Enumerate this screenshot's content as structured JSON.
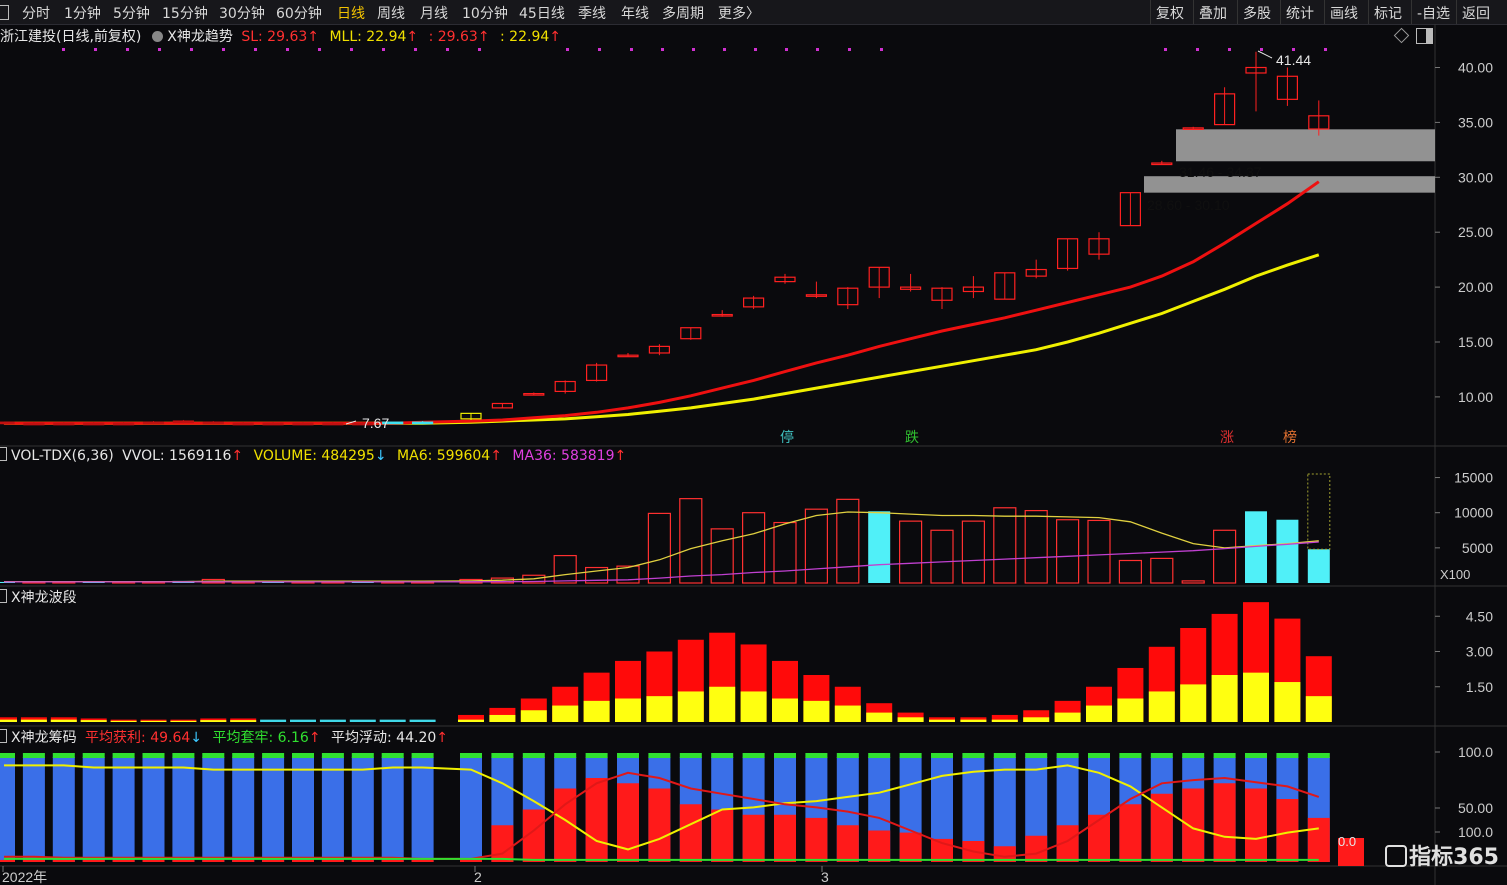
{
  "toolbar": {
    "periods": [
      "分时",
      "1分钟",
      "5分钟",
      "15分钟",
      "30分钟",
      "60分钟",
      "日线",
      "周线",
      "月线",
      "10分钟",
      "45日线",
      "季线",
      "年线",
      "多周期",
      "更多〉"
    ],
    "active_period": "日线",
    "right_buttons": [
      "复权",
      "叠加",
      "多股",
      "统计",
      "画线",
      "标记",
      "-自选",
      "返回"
    ]
  },
  "main_panel": {
    "title": "浙江建投(日线,前复权)",
    "indicator": "X神龙趋势",
    "sl": "SL: 29.63",
    "mll": "MLL: 22.94",
    "v3": ": 29.63",
    "v4": ": 22.94",
    "high_label": "41.44",
    "low_label": "7.67",
    "zone1": "31.46 - 34.37",
    "zone2": "28.60 - 30.10",
    "y_ticks": [
      "40.00",
      "35.00",
      "30.00",
      "25.00",
      "20.00",
      "15.00",
      "10.00"
    ],
    "markers": [
      "停",
      "跌",
      "涨",
      "榜"
    ]
  },
  "vol_panel": {
    "name": "VOL-TDX(6,36)",
    "vvol": "VVOL: 1569116",
    "volume": "VOLUME: 484295",
    "ma6": "MA6: 599604",
    "ma36": "MA36: 583819",
    "y_ticks": [
      "15000",
      "10000",
      "5000"
    ],
    "unit": "X100"
  },
  "wave_panel": {
    "name": "X神龙波段",
    "y_ticks": [
      "4.50",
      "3.00",
      "1.50"
    ]
  },
  "chip_panel": {
    "name": "X神龙筹码",
    "profit": "平均获利: 49.64",
    "trap": "平均套牢: 6.16",
    "float": "平均浮动: 44.20",
    "y_ticks": [
      "100.0",
      "50.00",
      "100.0"
    ],
    "overlay_label": "0.0"
  },
  "x_axis": [
    "2022年",
    "2",
    "3"
  ],
  "watermark": "指标365",
  "chart_data": {
    "type": "candlestick",
    "candles": [
      [
        7.7,
        7.7,
        7.5,
        7.6
      ],
      [
        7.6,
        7.7,
        7.5,
        7.6
      ],
      [
        7.6,
        7.7,
        7.5,
        7.6
      ],
      [
        7.6,
        7.7,
        7.5,
        7.6
      ],
      [
        7.6,
        7.7,
        7.5,
        7.6
      ],
      [
        7.6,
        7.8,
        7.5,
        7.7
      ],
      [
        7.7,
        7.9,
        7.6,
        7.8
      ],
      [
        7.7,
        7.8,
        7.5,
        7.6
      ],
      [
        7.6,
        7.7,
        7.5,
        7.6
      ],
      [
        7.6,
        7.7,
        7.5,
        7.6
      ],
      [
        7.6,
        7.7,
        7.5,
        7.6
      ],
      [
        7.6,
        7.7,
        7.5,
        7.6
      ],
      [
        7.6,
        7.7,
        7.5,
        7.6
      ],
      [
        7.6,
        7.7,
        7.67,
        7.7
      ],
      [
        7.7,
        7.8,
        7.6,
        7.7
      ],
      [
        8.0,
        8.5,
        7.9,
        8.5
      ],
      [
        9.0,
        9.4,
        9.0,
        9.4
      ],
      [
        10.3,
        10.4,
        10.2,
        10.3
      ],
      [
        10.5,
        11.5,
        10.3,
        11.4
      ],
      [
        11.5,
        13.1,
        11.4,
        12.9
      ],
      [
        13.8,
        14.0,
        13.7,
        13.8
      ],
      [
        14.0,
        14.8,
        13.8,
        14.6
      ],
      [
        15.3,
        16.3,
        15.2,
        16.3
      ],
      [
        17.5,
        17.9,
        17.3,
        17.4
      ],
      [
        18.2,
        19.2,
        18.0,
        19.0
      ],
      [
        20.5,
        21.2,
        20.3,
        20.9
      ],
      [
        19.3,
        20.5,
        19.0,
        19.3
      ],
      [
        18.4,
        20.0,
        18.0,
        19.9
      ],
      [
        20.0,
        21.8,
        19.0,
        21.8
      ],
      [
        19.8,
        21.2,
        19.6,
        20.0
      ],
      [
        18.8,
        20.0,
        18.0,
        19.9
      ],
      [
        19.6,
        21.0,
        19.0,
        20.0
      ],
      [
        18.9,
        21.3,
        18.9,
        21.3
      ],
      [
        21.0,
        22.5,
        20.8,
        21.6
      ],
      [
        21.7,
        24.4,
        21.5,
        24.4
      ],
      [
        23.0,
        25.0,
        22.5,
        24.4
      ],
      [
        25.6,
        28.6,
        25.6,
        28.6
      ],
      [
        31.3,
        31.5,
        31.2,
        31.3
      ],
      [
        34.5,
        34.6,
        34.4,
        34.5
      ],
      [
        34.8,
        38.2,
        34.8,
        37.6
      ],
      [
        39.5,
        41.44,
        36.0,
        40.0
      ],
      [
        39.2,
        40.0,
        36.5,
        37.1
      ],
      [
        34.4,
        37.0,
        33.8,
        35.6
      ]
    ],
    "ma_red": [
      7.6,
      7.6,
      7.6,
      7.6,
      7.6,
      7.6,
      7.6,
      7.6,
      7.6,
      7.6,
      7.6,
      7.6,
      7.6,
      7.6,
      7.7,
      7.8,
      7.9,
      8.1,
      8.3,
      8.6,
      9.0,
      9.5,
      10.1,
      10.8,
      11.5,
      12.3,
      13.1,
      13.8,
      14.6,
      15.3,
      16.0,
      16.6,
      17.2,
      17.9,
      18.6,
      19.3,
      20.0,
      21.0,
      22.3,
      24.0,
      25.8,
      27.6,
      29.6
    ],
    "ma_yellow": [
      7.6,
      7.6,
      7.6,
      7.6,
      7.6,
      7.6,
      7.6,
      7.6,
      7.6,
      7.6,
      7.6,
      7.6,
      7.6,
      7.6,
      7.6,
      7.7,
      7.8,
      7.9,
      8.0,
      8.2,
      8.4,
      8.7,
      9.0,
      9.4,
      9.8,
      10.3,
      10.8,
      11.3,
      11.8,
      12.3,
      12.8,
      13.3,
      13.8,
      14.3,
      15.0,
      15.8,
      16.7,
      17.6,
      18.7,
      19.8,
      21.0,
      22.0,
      22.94
    ],
    "volume": [
      150,
      150,
      150,
      200,
      150,
      150,
      300,
      500,
      200,
      150,
      150,
      150,
      150,
      200,
      200,
      500,
      700,
      1100,
      3900,
      2200,
      2400,
      9900,
      12000,
      7700,
      10000,
      8600,
      10500,
      11900,
      10200,
      8800,
      7500,
      8800,
      10700,
      10300,
      9000,
      8900,
      3200,
      3500,
      300,
      7500,
      10200,
      9000,
      4800
    ],
    "volume_up": [
      false,
      false,
      false,
      false,
      false,
      false,
      false,
      false,
      false,
      false,
      false,
      false,
      false,
      false,
      false,
      true,
      true,
      true,
      true,
      true,
      true,
      true,
      true,
      true,
      true,
      true,
      true,
      true,
      true,
      false,
      true,
      true,
      true,
      true,
      true,
      true,
      true,
      true,
      true,
      true,
      false,
      false,
      false
    ],
    "vol_ma6": [
      200,
      200,
      200,
      200,
      200,
      200,
      200,
      250,
      250,
      250,
      250,
      250,
      250,
      250,
      250,
      300,
      400,
      600,
      1200,
      1700,
      2200,
      3300,
      4900,
      6000,
      7000,
      8400,
      9600,
      10100,
      10000,
      9800,
      9600,
      9600,
      9500,
      9500,
      9400,
      9300,
      8700,
      7100,
      5600,
      5000,
      5300,
      5600,
      6000
    ],
    "vol_ma36": [
      150,
      150,
      150,
      150,
      150,
      150,
      150,
      160,
      160,
      160,
      160,
      160,
      160,
      160,
      160,
      170,
      190,
      220,
      300,
      380,
      460,
      700,
      1000,
      1200,
      1500,
      1700,
      2000,
      2300,
      2600,
      2800,
      3000,
      3200,
      3400,
      3600,
      3800,
      4000,
      4200,
      4400,
      4600,
      4900,
      5200,
      5500,
      5838
    ],
    "wave": [
      0.2,
      0.2,
      0.2,
      0.15,
      0.1,
      0.1,
      0.1,
      0.15,
      0.15,
      0.1,
      0.1,
      0.1,
      0.1,
      0.1,
      0.1,
      0.3,
      0.6,
      1.0,
      1.5,
      2.1,
      2.6,
      3.0,
      3.5,
      3.8,
      3.3,
      2.6,
      2.0,
      1.5,
      0.8,
      0.4,
      0.2,
      0.2,
      0.3,
      0.5,
      0.9,
      1.5,
      2.3,
      3.2,
      4.0,
      4.6,
      5.1,
      4.4,
      2.8
    ],
    "wave_yellow": [
      0.1,
      0.1,
      0.1,
      0.08,
      0.05,
      0.05,
      0.05,
      0.08,
      0.08,
      0.05,
      0.05,
      0.05,
      0.05,
      0.05,
      0.05,
      0.1,
      0.3,
      0.5,
      0.7,
      0.9,
      1.0,
      1.1,
      1.3,
      1.5,
      1.3,
      1.0,
      0.9,
      0.7,
      0.4,
      0.2,
      0.1,
      0.1,
      0.1,
      0.2,
      0.4,
      0.7,
      1.0,
      1.3,
      1.6,
      2.0,
      2.1,
      1.7,
      1.1
    ],
    "chip_profit": [
      2,
      2,
      2,
      2,
      2,
      2,
      2,
      2,
      2,
      2,
      2,
      2,
      2,
      2,
      2,
      2,
      35,
      50,
      70,
      80,
      75,
      70,
      55,
      50,
      45,
      45,
      42,
      35,
      30,
      28,
      22,
      20,
      15,
      25,
      35,
      45,
      55,
      65,
      70,
      75,
      70,
      60,
      42
    ],
    "chip_yellow": [
      92,
      92,
      92,
      90,
      90,
      90,
      90,
      88,
      88,
      88,
      88,
      88,
      88,
      90,
      90,
      88,
      75,
      58,
      40,
      20,
      12,
      22,
      36,
      50,
      52,
      56,
      58,
      62,
      66,
      74,
      82,
      86,
      88,
      88,
      92,
      85,
      72,
      52,
      32,
      24,
      22,
      28,
      32
    ],
    "chip_red_line": [
      5,
      5,
      4,
      4,
      4,
      4,
      4,
      4,
      4,
      4,
      4,
      4,
      4,
      4,
      3,
      3,
      8,
      30,
      55,
      75,
      85,
      80,
      70,
      65,
      60,
      55,
      52,
      48,
      42,
      30,
      18,
      10,
      5,
      8,
      20,
      40,
      60,
      75,
      78,
      80,
      76,
      72,
      62
    ],
    "chip_green": [
      3,
      3,
      3,
      3,
      3,
      3,
      3,
      3,
      3,
      3,
      3,
      3,
      3,
      3,
      3,
      3,
      3,
      2,
      2,
      2,
      2,
      2,
      2,
      2,
      2,
      2,
      2,
      2,
      2,
      2,
      2,
      2,
      2,
      2,
      2,
      2,
      2,
      2,
      2,
      2,
      2,
      2,
      2
    ]
  }
}
